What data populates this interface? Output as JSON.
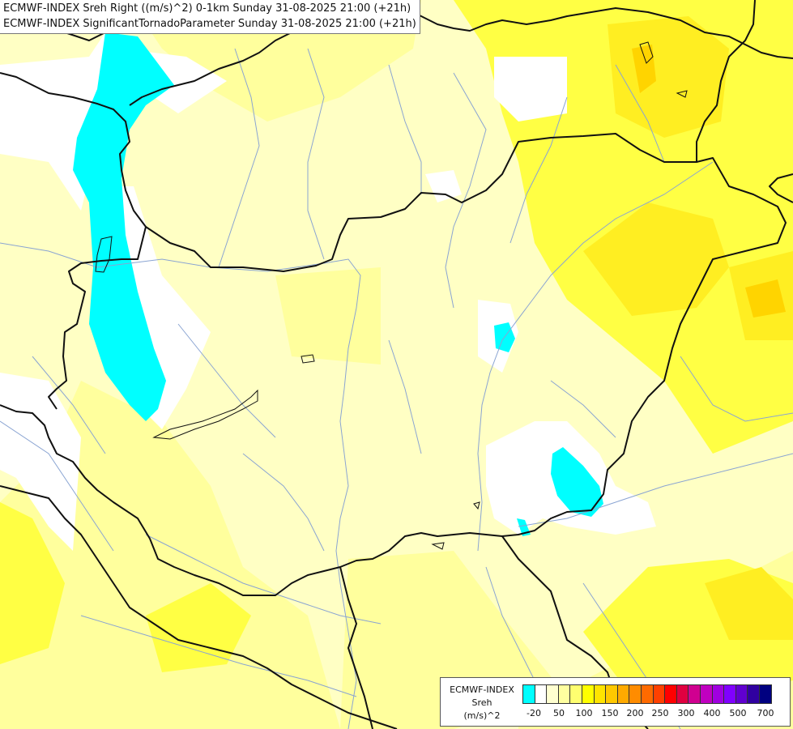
{
  "header": {
    "line1": "ECMWF-INDEX Sreh Right ((m/s)^2) 0-1km Sunday 31-08-2025 21:00 (+21h)",
    "line2": "ECMWF-INDEX SignificantTornadoParameter Sunday 31-08-2025 21:00 (+21h)"
  },
  "legend": {
    "source": "ECMWF-INDEX",
    "variable": "Sreh",
    "unit": "(m/s)^2",
    "colors": [
      "#00ffff",
      "#ffffff",
      "#ffffd0",
      "#ffffa0",
      "#ffff70",
      "#ffff00",
      "#ffe400",
      "#ffc800",
      "#ffaa00",
      "#ff8c00",
      "#ff6a00",
      "#ff4000",
      "#ff0000",
      "#e00040",
      "#d00090",
      "#c000c0",
      "#a000e0",
      "#8000ff",
      "#6000d0",
      "#3000a0",
      "#000080"
    ],
    "ticks": [
      "-20",
      "50",
      "100",
      "150",
      "200",
      "250",
      "300",
      "400",
      "500",
      "700"
    ]
  },
  "map": {
    "region": "Hungary and surroundings",
    "layers": [
      "country-borders",
      "rivers",
      "lakes",
      "shaded-field"
    ]
  }
}
